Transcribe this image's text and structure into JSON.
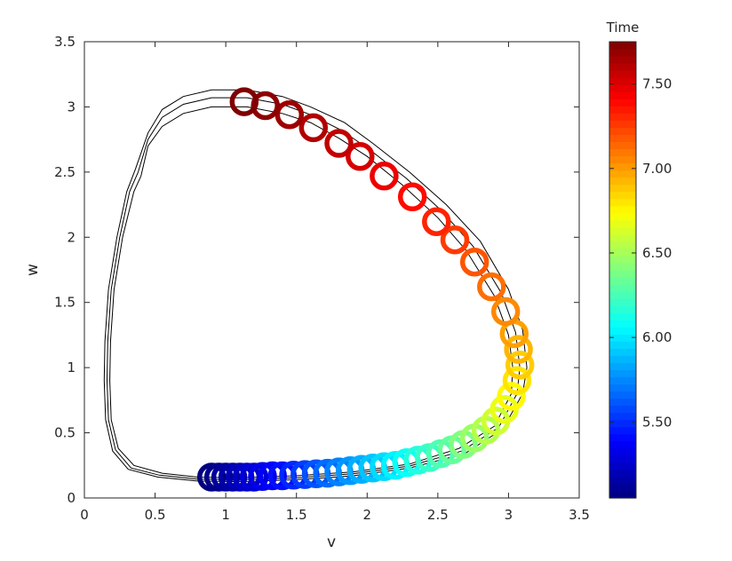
{
  "chart_data": {
    "type": "scatter",
    "xlabel": "v",
    "ylabel": "w",
    "xlim": [
      0,
      3.5
    ],
    "ylim": [
      0,
      3.5
    ],
    "xticks": [
      "0",
      "0.5",
      "1",
      "1.5",
      "2",
      "2.5",
      "3",
      "3.5"
    ],
    "yticks": [
      "0",
      "0.5",
      "1",
      "1.5",
      "2",
      "2.5",
      "3",
      "3.5"
    ],
    "grid": false,
    "colormap": "jet",
    "marker": "open circle",
    "colorbar": {
      "title": "Time",
      "range": [
        5.05,
        7.75
      ],
      "ticks": [
        "5.50",
        "6.00",
        "6.50",
        "7.00",
        "7.50"
      ],
      "tick_values": [
        5.5,
        6.0,
        6.5,
        7.0,
        7.5
      ]
    },
    "trajectory_lines": [
      {
        "color": "#000000",
        "points": [
          [
            0.4,
            2.47
          ],
          [
            0.35,
            2.35
          ],
          [
            0.27,
            2.0
          ],
          [
            0.21,
            1.6
          ],
          [
            0.185,
            1.2
          ],
          [
            0.18,
            0.9
          ],
          [
            0.19,
            0.6
          ],
          [
            0.24,
            0.38
          ],
          [
            0.35,
            0.25
          ],
          [
            0.55,
            0.19
          ],
          [
            0.8,
            0.16
          ],
          [
            1.1,
            0.155
          ],
          [
            1.5,
            0.17
          ],
          [
            1.9,
            0.2
          ],
          [
            2.3,
            0.26
          ],
          [
            2.65,
            0.38
          ],
          [
            2.9,
            0.55
          ],
          [
            3.02,
            0.8
          ],
          [
            3.03,
            1.0
          ],
          [
            3.0,
            1.25
          ],
          [
            2.9,
            1.55
          ],
          [
            2.7,
            1.9
          ],
          [
            2.5,
            2.15
          ],
          [
            2.25,
            2.4
          ],
          [
            2.0,
            2.62
          ],
          [
            1.8,
            2.76
          ],
          [
            1.6,
            2.88
          ],
          [
            1.4,
            2.95
          ],
          [
            1.15,
            3.0
          ],
          [
            0.9,
            3.0
          ],
          [
            0.7,
            2.95
          ],
          [
            0.55,
            2.85
          ],
          [
            0.45,
            2.7
          ],
          [
            0.4,
            2.47
          ]
        ]
      },
      {
        "color": "#000000",
        "points": [
          [
            0.38,
            2.5
          ],
          [
            0.32,
            2.35
          ],
          [
            0.25,
            2.0
          ],
          [
            0.19,
            1.6
          ],
          [
            0.165,
            1.2
          ],
          [
            0.16,
            0.9
          ],
          [
            0.17,
            0.6
          ],
          [
            0.22,
            0.37
          ],
          [
            0.33,
            0.23
          ],
          [
            0.53,
            0.175
          ],
          [
            0.8,
            0.145
          ],
          [
            1.1,
            0.14
          ],
          [
            1.5,
            0.155
          ],
          [
            1.9,
            0.185
          ],
          [
            2.3,
            0.245
          ],
          [
            2.67,
            0.36
          ],
          [
            2.93,
            0.54
          ],
          [
            3.06,
            0.8
          ],
          [
            3.08,
            1.0
          ],
          [
            3.05,
            1.27
          ],
          [
            2.95,
            1.57
          ],
          [
            2.75,
            1.93
          ],
          [
            2.53,
            2.2
          ],
          [
            2.28,
            2.45
          ],
          [
            2.02,
            2.67
          ],
          [
            1.82,
            2.82
          ],
          [
            1.6,
            2.94
          ],
          [
            1.4,
            3.02
          ],
          [
            1.15,
            3.07
          ],
          [
            0.9,
            3.07
          ],
          [
            0.7,
            3.02
          ],
          [
            0.55,
            2.92
          ],
          [
            0.45,
            2.75
          ],
          [
            0.38,
            2.5
          ]
        ]
      },
      {
        "color": "#000000",
        "points": [
          [
            0.36,
            2.52
          ],
          [
            0.3,
            2.35
          ],
          [
            0.23,
            2.0
          ],
          [
            0.17,
            1.6
          ],
          [
            0.145,
            1.2
          ],
          [
            0.14,
            0.9
          ],
          [
            0.15,
            0.6
          ],
          [
            0.2,
            0.36
          ],
          [
            0.31,
            0.22
          ],
          [
            0.52,
            0.16
          ],
          [
            0.8,
            0.13
          ],
          [
            1.1,
            0.125
          ],
          [
            1.5,
            0.14
          ],
          [
            1.9,
            0.17
          ],
          [
            2.3,
            0.23
          ],
          [
            2.69,
            0.34
          ],
          [
            2.96,
            0.53
          ],
          [
            3.1,
            0.8
          ],
          [
            3.13,
            1.0
          ],
          [
            3.1,
            1.29
          ],
          [
            3.0,
            1.6
          ],
          [
            2.8,
            1.97
          ],
          [
            2.56,
            2.25
          ],
          [
            2.3,
            2.5
          ],
          [
            2.04,
            2.72
          ],
          [
            1.84,
            2.88
          ],
          [
            1.6,
            3.0
          ],
          [
            1.4,
            3.08
          ],
          [
            1.15,
            3.13
          ],
          [
            0.9,
            3.13
          ],
          [
            0.7,
            3.08
          ],
          [
            0.55,
            2.98
          ],
          [
            0.45,
            2.8
          ],
          [
            0.36,
            2.52
          ]
        ]
      }
    ],
    "points": [
      {
        "v": 0.9,
        "w": 0.16,
        "t": 5.05
      },
      {
        "v": 0.95,
        "w": 0.16,
        "t": 5.08
      },
      {
        "v": 1.0,
        "w": 0.16,
        "t": 5.12
      },
      {
        "v": 1.05,
        "w": 0.16,
        "t": 5.16
      },
      {
        "v": 1.1,
        "w": 0.16,
        "t": 5.2
      },
      {
        "v": 1.15,
        "w": 0.16,
        "t": 5.24
      },
      {
        "v": 1.2,
        "w": 0.16,
        "t": 5.28
      },
      {
        "v": 1.26,
        "w": 0.165,
        "t": 5.33
      },
      {
        "v": 1.33,
        "w": 0.17,
        "t": 5.38
      },
      {
        "v": 1.4,
        "w": 0.17,
        "t": 5.43
      },
      {
        "v": 1.48,
        "w": 0.175,
        "t": 5.49
      },
      {
        "v": 1.56,
        "w": 0.18,
        "t": 5.55
      },
      {
        "v": 1.64,
        "w": 0.185,
        "t": 5.61
      },
      {
        "v": 1.72,
        "w": 0.19,
        "t": 5.67
      },
      {
        "v": 1.8,
        "w": 0.2,
        "t": 5.73
      },
      {
        "v": 1.88,
        "w": 0.21,
        "t": 5.79
      },
      {
        "v": 1.96,
        "w": 0.22,
        "t": 5.85
      },
      {
        "v": 2.04,
        "w": 0.23,
        "t": 5.91
      },
      {
        "v": 2.12,
        "w": 0.24,
        "t": 5.97
      },
      {
        "v": 2.2,
        "w": 0.25,
        "t": 6.03
      },
      {
        "v": 2.28,
        "w": 0.27,
        "t": 6.09
      },
      {
        "v": 2.36,
        "w": 0.29,
        "t": 6.15
      },
      {
        "v": 2.44,
        "w": 0.31,
        "t": 6.21
      },
      {
        "v": 2.52,
        "w": 0.34,
        "t": 6.27
      },
      {
        "v": 2.6,
        "w": 0.37,
        "t": 6.33
      },
      {
        "v": 2.68,
        "w": 0.41,
        "t": 6.4
      },
      {
        "v": 2.76,
        "w": 0.46,
        "t": 6.47
      },
      {
        "v": 2.84,
        "w": 0.52,
        "t": 6.54
      },
      {
        "v": 2.91,
        "w": 0.59,
        "t": 6.61
      },
      {
        "v": 2.97,
        "w": 0.68,
        "t": 6.68
      },
      {
        "v": 3.02,
        "w": 0.78,
        "t": 6.75
      },
      {
        "v": 3.06,
        "w": 0.9,
        "t": 6.81
      },
      {
        "v": 3.08,
        "w": 1.02,
        "t": 6.87
      },
      {
        "v": 3.07,
        "w": 1.14,
        "t": 6.93
      },
      {
        "v": 3.04,
        "w": 1.26,
        "t": 6.99
      },
      {
        "v": 2.98,
        "w": 1.43,
        "t": 7.05
      },
      {
        "v": 2.88,
        "w": 1.62,
        "t": 7.12
      },
      {
        "v": 2.76,
        "w": 1.81,
        "t": 7.19
      },
      {
        "v": 2.62,
        "w": 1.98,
        "t": 7.26
      },
      {
        "v": 2.49,
        "w": 2.12,
        "t": 7.32
      },
      {
        "v": 2.32,
        "w": 2.31,
        "t": 7.39
      },
      {
        "v": 2.12,
        "w": 2.47,
        "t": 7.46
      },
      {
        "v": 1.95,
        "w": 2.62,
        "t": 7.52
      },
      {
        "v": 1.8,
        "w": 2.72,
        "t": 7.57
      },
      {
        "v": 1.62,
        "w": 2.84,
        "t": 7.62
      },
      {
        "v": 1.45,
        "w": 2.94,
        "t": 7.67
      },
      {
        "v": 1.28,
        "w": 3.01,
        "t": 7.71
      },
      {
        "v": 1.13,
        "w": 3.04,
        "t": 7.75
      }
    ]
  }
}
